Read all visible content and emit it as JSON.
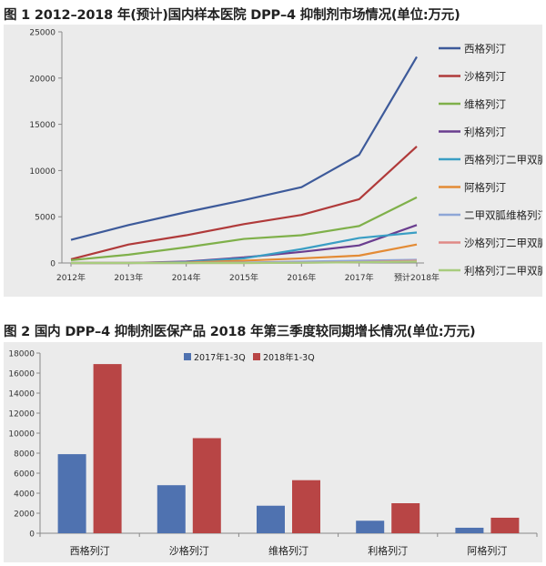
{
  "captions": {
    "fig1": "图 1  2012–2018 年(预计)国内样本医院 DPP–4 抑制剂市场情况(单位:万元)",
    "fig2": "图 2  国内 DPP–4 抑制剂医保产品 2018 年第三季度较同期增长情况(单位:万元)"
  },
  "chart_data": [
    {
      "type": "line",
      "categories": [
        "2012年",
        "2013年",
        "2014年",
        "2015年",
        "2016年",
        "2017年",
        "预计2018年"
      ],
      "ylim": [
        0,
        25000
      ],
      "yticks": [
        0,
        5000,
        10000,
        15000,
        20000,
        25000
      ],
      "grid": false,
      "legend_position": "right",
      "series": [
        {
          "name": "西格列汀",
          "color": "#3d5a9a",
          "values": [
            2500,
            4100,
            5500,
            6800,
            8200,
            11700,
            22300
          ]
        },
        {
          "name": "沙格列汀",
          "color": "#b03a3a",
          "values": [
            400,
            2000,
            3000,
            4200,
            5200,
            6900,
            12600
          ]
        },
        {
          "name": "维格列汀",
          "color": "#7fb04a",
          "values": [
            300,
            900,
            1700,
            2600,
            3000,
            4000,
            7100
          ]
        },
        {
          "name": "利格列汀",
          "color": "#6a3d8f",
          "values": [
            0,
            0,
            150,
            600,
            1200,
            1900,
            4100
          ]
        },
        {
          "name": "西格列汀二甲双胍",
          "color": "#3a9ec4",
          "values": [
            0,
            0,
            100,
            500,
            1500,
            2700,
            3300
          ]
        },
        {
          "name": "阿格列汀",
          "color": "#e38b35",
          "values": [
            0,
            0,
            50,
            250,
            500,
            800,
            2000
          ]
        },
        {
          "name": "二甲双胍维格列汀",
          "color": "#8ea6d6",
          "values": [
            0,
            0,
            0,
            50,
            150,
            250,
            350
          ]
        },
        {
          "name": "沙格列汀二甲双胍",
          "color": "#e08a86",
          "values": [
            0,
            0,
            0,
            0,
            30,
            100,
            250
          ]
        },
        {
          "name": "利格列汀二甲双胍",
          "color": "#a8cc7e",
          "values": [
            0,
            0,
            0,
            0,
            20,
            80,
            150
          ]
        }
      ]
    },
    {
      "type": "bar",
      "categories": [
        "西格列汀",
        "沙格列汀",
        "维格列汀",
        "利格列汀",
        "阿格列汀"
      ],
      "ylim": [
        0,
        18000
      ],
      "yticks": [
        0,
        2000,
        4000,
        6000,
        8000,
        10000,
        12000,
        14000,
        16000,
        18000
      ],
      "grid": false,
      "legend_position": "top",
      "series": [
        {
          "name": "2017年1-3Q",
          "color": "#4f72b0",
          "values": [
            7900,
            4800,
            2750,
            1250,
            550
          ]
        },
        {
          "name": "2018年1-3Q",
          "color": "#b84545",
          "values": [
            16900,
            9500,
            5300,
            3000,
            1550
          ]
        }
      ]
    }
  ]
}
